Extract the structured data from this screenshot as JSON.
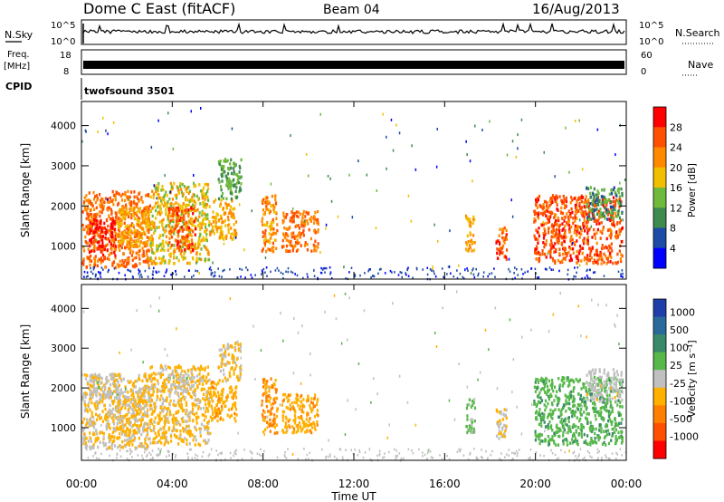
{
  "header": {
    "station": "Dome C East (fitACF)",
    "beam": "Beam 04",
    "date": "16/Aug/2013"
  },
  "sky_panel": {
    "label": "N.Sky",
    "y_ticks": [
      "10^5",
      "10^0"
    ],
    "right_label": "N.Search",
    "right_ticks": [
      "10^5",
      "10^0"
    ]
  },
  "freq_panel": {
    "label_line1": "Freq.",
    "label_line2": "[MHz]",
    "y_ticks": [
      "18",
      "8"
    ],
    "right_label": "Nave",
    "right_ticks": [
      "60",
      "0"
    ]
  },
  "cpid": {
    "label": "CPID",
    "value": "twofsound 3501"
  },
  "x_axis": {
    "label": "Time UT",
    "ticks": [
      "00:00",
      "04:00",
      "08:00",
      "12:00",
      "16:00",
      "20:00",
      "00:00"
    ]
  },
  "colors": {
    "power_scale": [
      "#0000ff",
      "#1d4ba5",
      "#3f8a4f",
      "#6fba3c",
      "#f0c000",
      "#ff8a00",
      "#ff5000",
      "#ff0000"
    ],
    "velocity_scale": [
      "#1f3fa8",
      "#2a6a9a",
      "#3a8a6a",
      "#57b84a",
      "#c0c0c0",
      "#ffb000",
      "#ff8000",
      "#ff5000",
      "#ff0000"
    ]
  },
  "chart_data": [
    {
      "type": "heatmap",
      "panel": "power",
      "ylabel": "Slant Range [km]",
      "xlabel": "",
      "y_ticks": [
        "1000",
        "2000",
        "3000",
        "4000"
      ],
      "ylim": [
        180,
        4600
      ],
      "xlim": [
        0,
        24
      ],
      "colorbar_label": "Power [dB]",
      "colorbar_ticks": [
        "4",
        "8",
        "12",
        "16",
        "20",
        "24",
        "28"
      ],
      "clim": [
        0,
        32
      ],
      "patches": [
        {
          "t0": 0.0,
          "t1": 3.0,
          "r0": 500,
          "r1": 2400,
          "v": 24
        },
        {
          "t0": 0.3,
          "t1": 1.5,
          "r0": 800,
          "r1": 1700,
          "v": 30
        },
        {
          "t0": 1.5,
          "t1": 3.0,
          "r0": 1000,
          "r1": 2000,
          "v": 20
        },
        {
          "t0": 3.0,
          "t1": 5.6,
          "r0": 600,
          "r1": 2600,
          "v": 18
        },
        {
          "t0": 3.8,
          "t1": 5.0,
          "r0": 900,
          "r1": 2000,
          "v": 26
        },
        {
          "t0": 5.6,
          "t1": 6.8,
          "r0": 1200,
          "r1": 2200,
          "v": 20
        },
        {
          "t0": 6.0,
          "t1": 7.0,
          "r0": 2200,
          "r1": 3200,
          "v": 12
        },
        {
          "t0": 7.9,
          "t1": 8.6,
          "r0": 900,
          "r1": 2300,
          "v": 22
        },
        {
          "t0": 8.8,
          "t1": 10.4,
          "r0": 900,
          "r1": 1900,
          "v": 24
        },
        {
          "t0": 16.9,
          "t1": 17.3,
          "r0": 900,
          "r1": 1800,
          "v": 20
        },
        {
          "t0": 18.2,
          "t1": 18.7,
          "r0": 700,
          "r1": 1500,
          "v": 26
        },
        {
          "t0": 19.9,
          "t1": 23.8,
          "r0": 600,
          "r1": 2300,
          "v": 26
        },
        {
          "t0": 22.2,
          "t1": 23.8,
          "r0": 1700,
          "r1": 2500,
          "v": 10
        }
      ]
    },
    {
      "type": "heatmap",
      "panel": "velocity",
      "ylabel": "Slant Range [km]",
      "xlabel": "Time UT",
      "y_ticks": [
        "1000",
        "2000",
        "3000",
        "4000"
      ],
      "ylim": [
        180,
        4600
      ],
      "xlim": [
        0,
        24
      ],
      "colorbar_label": "Velocity [m s⁻¹]",
      "colorbar_ticks": [
        "1000",
        "500",
        "100",
        "25",
        "-25",
        "-100",
        "-500",
        "-1000"
      ],
      "clim": [
        -1200,
        1200
      ],
      "patches": [
        {
          "t0": 0.0,
          "t1": 3.0,
          "r0": 500,
          "r1": 2400,
          "v": -150
        },
        {
          "t0": 0.3,
          "t1": 1.6,
          "r0": 1800,
          "r1": 2400,
          "v": 0
        },
        {
          "t0": 1.5,
          "t1": 3.0,
          "r0": 900,
          "r1": 2000,
          "v": -120
        },
        {
          "t0": 3.0,
          "t1": 5.6,
          "r0": 600,
          "r1": 2600,
          "v": -200
        },
        {
          "t0": 3.8,
          "t1": 5.0,
          "r0": 1900,
          "r1": 2400,
          "v": 0
        },
        {
          "t0": 5.6,
          "t1": 6.8,
          "r0": 1200,
          "r1": 2200,
          "v": -300
        },
        {
          "t0": 6.0,
          "t1": 7.0,
          "r0": 2200,
          "r1": 3200,
          "v": -150
        },
        {
          "t0": 7.9,
          "t1": 8.6,
          "r0": 900,
          "r1": 2300,
          "v": -400
        },
        {
          "t0": 8.8,
          "t1": 10.4,
          "r0": 900,
          "r1": 1900,
          "v": -300
        },
        {
          "t0": 16.9,
          "t1": 17.3,
          "r0": 900,
          "r1": 1800,
          "v": 200
        },
        {
          "t0": 18.2,
          "t1": 18.7,
          "r0": 700,
          "r1": 1500,
          "v": -120
        },
        {
          "t0": 19.9,
          "t1": 23.8,
          "r0": 600,
          "r1": 2300,
          "v": 300
        },
        {
          "t0": 22.2,
          "t1": 23.8,
          "r0": 1700,
          "r1": 2500,
          "v": 0
        }
      ]
    }
  ]
}
